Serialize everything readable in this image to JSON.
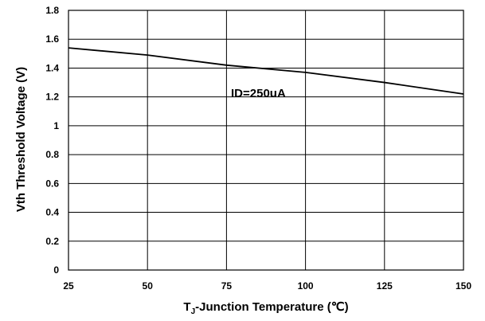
{
  "chart_data": {
    "type": "line",
    "title": "",
    "xlabel_main": "T",
    "xlabel_sub": "J",
    "xlabel_rest": "-Junction Temperature (℃)",
    "ylabel": "Vth Threshold Voltage (V)",
    "xlim": [
      25,
      150
    ],
    "ylim": [
      0,
      1.8
    ],
    "x_ticks": [
      25,
      50,
      75,
      100,
      125,
      150
    ],
    "y_ticks": [
      0,
      0.2,
      0.4,
      0.6,
      0.8,
      1,
      1.2,
      1.4,
      1.6,
      1.8
    ],
    "x_tick_labels": [
      "25",
      "50",
      "75",
      "100",
      "125",
      "150"
    ],
    "y_tick_labels": [
      "0",
      "0.2",
      "0.4",
      "0.6",
      "0.8",
      "1",
      "1.2",
      "1.4",
      "1.6",
      "1.8"
    ],
    "grid": true,
    "annotation": "ID=250uA",
    "series": [
      {
        "x": [
          25,
          50,
          75,
          100,
          125,
          150
        ],
        "y": [
          1.54,
          1.49,
          1.42,
          1.37,
          1.3,
          1.22
        ]
      }
    ]
  }
}
